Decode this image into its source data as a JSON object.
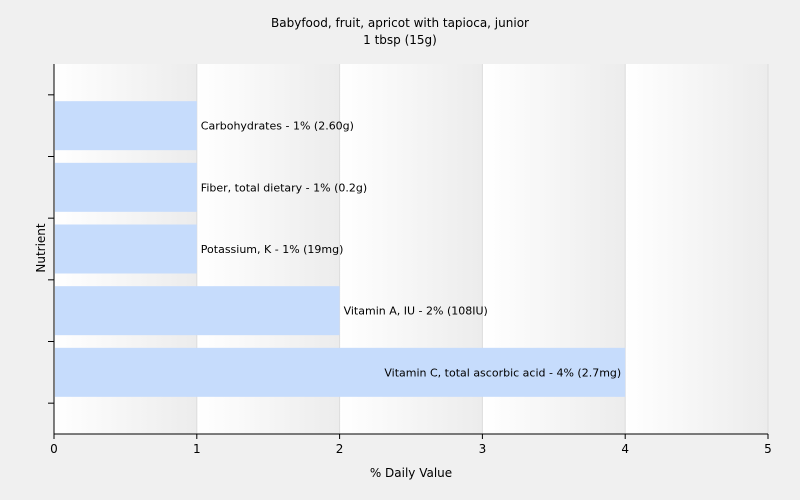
{
  "chart_data": {
    "type": "bar",
    "orientation": "horizontal",
    "title": "Babyfood, fruit, apricot with tapioca, junior",
    "subtitle": "1 tbsp (15g)",
    "xlabel": "% Daily Value",
    "ylabel": "Nutrient",
    "xlim": [
      0,
      5
    ],
    "xticks": [
      "0",
      "1",
      "2",
      "3",
      "4",
      "5"
    ],
    "grid": true,
    "legend": "none",
    "bar_color": "#c6dcfc",
    "categories": [
      "Carbohydrates",
      "Fiber, total dietary",
      "Potassium, K",
      "Vitamin A, IU",
      "Vitamin C, total ascorbic acid"
    ],
    "values": [
      1,
      1,
      1,
      2,
      4
    ],
    "bar_labels": [
      "Carbohydrates - 1% (2.60g)",
      "Fiber, total dietary - 1% (0.2g)",
      "Potassium, K - 1% (19mg)",
      "Vitamin A, IU - 2% (108IU)",
      "Vitamin C, total ascorbic acid - 4% (2.7mg)"
    ]
  }
}
